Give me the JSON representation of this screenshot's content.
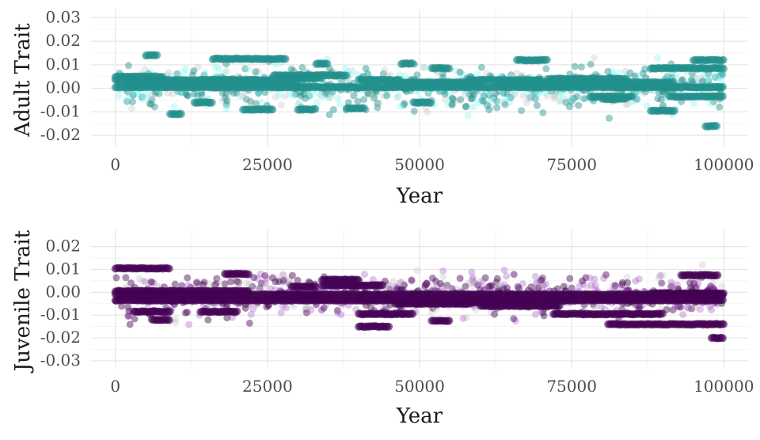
{
  "chart_data": [
    {
      "type": "scatter",
      "title": "",
      "xlabel": "Year",
      "ylabel": "Adult Trait",
      "xlim": [
        -4000,
        104000
      ],
      "ylim": [
        -0.025,
        0.0335
      ],
      "x_ticks": [
        0,
        25000,
        50000,
        75000,
        100000
      ],
      "x_tick_labels": [
        "0",
        "25000",
        "50000",
        "75000",
        "100000"
      ],
      "y_ticks": [
        -0.02,
        -0.01,
        0.0,
        0.01,
        0.02,
        0.03
      ],
      "y_tick_labels": [
        "-0.02",
        "-0.01",
        "0.00",
        "0.01",
        "0.02",
        "0.03"
      ],
      "grid": true,
      "colors": {
        "dominant": "#21908C",
        "light": "#7FF6F0"
      },
      "series": [
        {
          "role": "persistent-lineages",
          "segments": [
            [
              0,
              8000,
              0.005
            ],
            [
              0,
              20000,
              0.0035
            ],
            [
              0,
              100000,
              0.0005
            ],
            [
              2000,
              30000,
              0.002
            ],
            [
              5000,
              7000,
              0.014
            ],
            [
              9000,
              11000,
              -0.011
            ],
            [
              13000,
              16000,
              -0.006
            ],
            [
              16000,
              28000,
              0.0125
            ],
            [
              19000,
              29000,
              0.0035
            ],
            [
              21000,
              24000,
              -0.009
            ],
            [
              24000,
              26000,
              -0.009
            ],
            [
              26000,
              38000,
              0.0055
            ],
            [
              28000,
              34000,
              0.0045
            ],
            [
              30000,
              33000,
              -0.009
            ],
            [
              33000,
              35000,
              0.0105
            ],
            [
              38000,
              41000,
              -0.0085
            ],
            [
              40000,
              47000,
              0.0035
            ],
            [
              45000,
              60000,
              0.0025
            ],
            [
              47000,
              49000,
              0.0105
            ],
            [
              49000,
              52000,
              -0.006
            ],
            [
              52000,
              55000,
              0.0085
            ],
            [
              58000,
              70000,
              0.0035
            ],
            [
              66000,
              71000,
              0.012
            ],
            [
              65000,
              92000,
              0.0025
            ],
            [
              71000,
              84000,
              0.004
            ],
            [
              78000,
              85000,
              -0.0035
            ],
            [
              80000,
              84000,
              -0.0045
            ],
            [
              88000,
              92000,
              -0.0095
            ],
            [
              88000,
              100000,
              0.0085
            ],
            [
              91000,
              100000,
              -0.0035
            ],
            [
              95000,
              100000,
              0.012
            ],
            [
              97000,
              99000,
              -0.016
            ]
          ]
        }
      ],
      "scatter_seed": 7,
      "scatter_count": 850,
      "scatter_spread": 0.0075
    },
    {
      "type": "scatter",
      "title": "",
      "xlabel": "Year",
      "ylabel": "Juvenile Trait",
      "xlim": [
        -4000,
        104000
      ],
      "ylim": [
        -0.0335,
        0.0275
      ],
      "x_ticks": [
        0,
        25000,
        50000,
        75000,
        100000
      ],
      "x_tick_labels": [
        "0",
        "25000",
        "50000",
        "75000",
        "100000"
      ],
      "y_ticks": [
        -0.03,
        -0.02,
        -0.01,
        0.0,
        0.01,
        0.02
      ],
      "y_tick_labels": [
        "-0.03",
        "-0.02",
        "-0.01",
        "0.00",
        "0.01",
        "0.02"
      ],
      "grid": true,
      "colors": {
        "dominant": "#440154",
        "light": "#A35BC2"
      },
      "series": [
        {
          "role": "persistent-lineages",
          "segments": [
            [
              0,
              9000,
              0.0105
            ],
            [
              0,
              22000,
              0.0005
            ],
            [
              0,
              100000,
              -0.0035
            ],
            [
              0,
              100000,
              -0.001
            ],
            [
              3000,
              9000,
              -0.0085
            ],
            [
              6000,
              9000,
              -0.012
            ],
            [
              14000,
              20000,
              -0.0085
            ],
            [
              18000,
              22000,
              0.008
            ],
            [
              26000,
              34000,
              -0.0015
            ],
            [
              29000,
              33000,
              0.0025
            ],
            [
              34000,
              44000,
              0.003
            ],
            [
              34000,
              40000,
              0.0055
            ],
            [
              40000,
              49000,
              -0.0095
            ],
            [
              40000,
              45000,
              -0.015
            ],
            [
              46000,
              58000,
              -0.005
            ],
            [
              52000,
              55000,
              -0.0125
            ],
            [
              58000,
              66000,
              -0.0045
            ],
            [
              60000,
              73000,
              -0.006
            ],
            [
              72000,
              90000,
              -0.0095
            ],
            [
              78000,
              88000,
              -0.0025
            ],
            [
              81000,
              100000,
              -0.014
            ],
            [
              88000,
              100000,
              -0.0005
            ],
            [
              93000,
              99000,
              0.0075
            ],
            [
              98000,
              100000,
              -0.02
            ]
          ]
        }
      ],
      "scatter_seed": 13,
      "scatter_count": 850,
      "scatter_spread": 0.0075
    }
  ]
}
